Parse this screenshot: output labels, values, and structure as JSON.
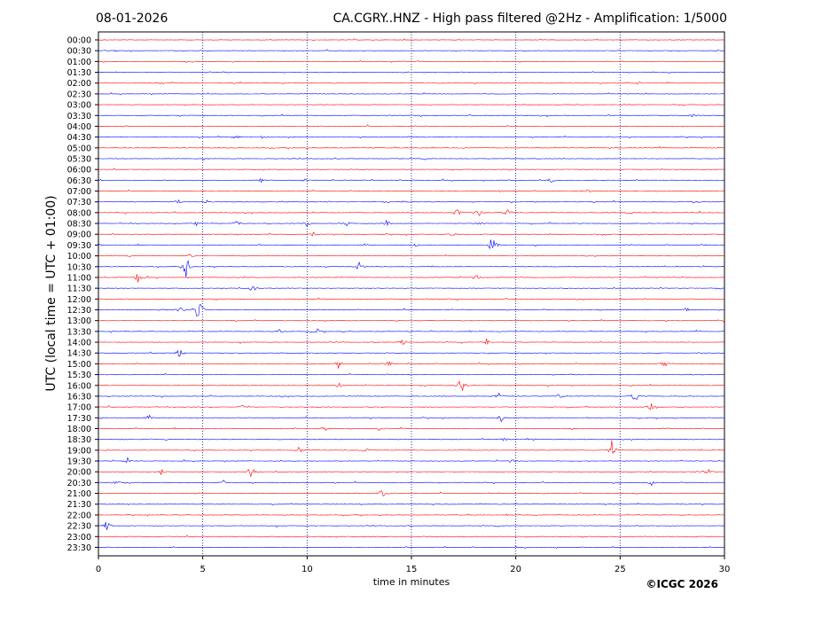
{
  "header": {
    "date": "08-01-2026",
    "title": "CA.CGRY..HNZ - High pass filtered @2Hz - Amplification: 1/5000"
  },
  "copyright": "©ICGC 2026",
  "colors": {
    "red_trace": "#ff0000",
    "blue_trace": "#0000ff",
    "grid": "#000080",
    "axis": "#000000",
    "background": "#ffffff"
  },
  "chart_data": {
    "type": "line",
    "xlabel": "time in minutes",
    "ylabel": "UTC (local time = UTC + 01:00)",
    "xlim": [
      0,
      30
    ],
    "x_ticks": [
      "0",
      "5",
      "10",
      "15",
      "20",
      "25",
      "30"
    ],
    "grid": "vertical dotted lines every 5 minutes",
    "rows": [
      {
        "label": "00:00",
        "color": "red"
      },
      {
        "label": "00:30",
        "color": "blue"
      },
      {
        "label": "01:00",
        "color": "red"
      },
      {
        "label": "01:30",
        "color": "blue"
      },
      {
        "label": "02:00",
        "color": "red"
      },
      {
        "label": "02:30",
        "color": "blue"
      },
      {
        "label": "03:00",
        "color": "red"
      },
      {
        "label": "03:30",
        "color": "blue"
      },
      {
        "label": "04:00",
        "color": "red"
      },
      {
        "label": "04:30",
        "color": "blue"
      },
      {
        "label": "05:00",
        "color": "red"
      },
      {
        "label": "05:30",
        "color": "blue"
      },
      {
        "label": "06:00",
        "color": "red"
      },
      {
        "label": "06:30",
        "color": "blue"
      },
      {
        "label": "07:00",
        "color": "red"
      },
      {
        "label": "07:30",
        "color": "blue"
      },
      {
        "label": "08:00",
        "color": "red"
      },
      {
        "label": "08:30",
        "color": "blue"
      },
      {
        "label": "09:00",
        "color": "red"
      },
      {
        "label": "09:30",
        "color": "blue"
      },
      {
        "label": "10:00",
        "color": "red"
      },
      {
        "label": "10:30",
        "color": "blue"
      },
      {
        "label": "11:00",
        "color": "red"
      },
      {
        "label": "11:30",
        "color": "blue"
      },
      {
        "label": "12:00",
        "color": "red"
      },
      {
        "label": "12:30",
        "color": "blue"
      },
      {
        "label": "13:00",
        "color": "red"
      },
      {
        "label": "13:30",
        "color": "blue"
      },
      {
        "label": "14:00",
        "color": "red"
      },
      {
        "label": "14:30",
        "color": "blue"
      },
      {
        "label": "15:00",
        "color": "red"
      },
      {
        "label": "15:30",
        "color": "blue"
      },
      {
        "label": "16:00",
        "color": "red"
      },
      {
        "label": "16:30",
        "color": "blue"
      },
      {
        "label": "17:00",
        "color": "red"
      },
      {
        "label": "17:30",
        "color": "blue"
      },
      {
        "label": "18:00",
        "color": "red"
      },
      {
        "label": "18:30",
        "color": "blue"
      },
      {
        "label": "19:00",
        "color": "red"
      },
      {
        "label": "19:30",
        "color": "blue"
      },
      {
        "label": "20:00",
        "color": "red"
      },
      {
        "label": "20:30",
        "color": "blue"
      },
      {
        "label": "21:00",
        "color": "red"
      },
      {
        "label": "21:30",
        "color": "blue"
      },
      {
        "label": "22:00",
        "color": "red"
      },
      {
        "label": "22:30",
        "color": "blue"
      },
      {
        "label": "23:00",
        "color": "red"
      },
      {
        "label": "23:30",
        "color": "blue"
      }
    ],
    "events": [
      {
        "row": "02:00",
        "minute": 25.9,
        "amplitude": 0.15
      },
      {
        "row": "03:30",
        "minute": 28.5,
        "amplitude": 0.2
      },
      {
        "row": "04:30",
        "minute": 6.6,
        "amplitude": 0.3
      },
      {
        "row": "04:30",
        "minute": 7.9,
        "amplitude": 0.2
      },
      {
        "row": "06:30",
        "minute": 7.8,
        "amplitude": 0.25
      },
      {
        "row": "06:30",
        "minute": 9.9,
        "amplitude": 0.2
      },
      {
        "row": "06:30",
        "minute": 21.7,
        "amplitude": 0.3
      },
      {
        "row": "07:00",
        "minute": 19.3,
        "amplitude": 0.2
      },
      {
        "row": "07:00",
        "minute": 23.5,
        "amplitude": 0.25
      },
      {
        "row": "07:30",
        "minute": 3.8,
        "amplitude": 0.3
      },
      {
        "row": "07:30",
        "minute": 5.2,
        "amplitude": 0.2
      },
      {
        "row": "07:30",
        "minute": 14.6,
        "amplitude": 0.2
      },
      {
        "row": "07:30",
        "minute": 28.5,
        "amplitude": 0.2
      },
      {
        "row": "08:00",
        "minute": 17.2,
        "amplitude": 0.5
      },
      {
        "row": "08:00",
        "minute": 18.2,
        "amplitude": 0.5
      },
      {
        "row": "08:00",
        "minute": 19.6,
        "amplitude": 0.6
      },
      {
        "row": "08:00",
        "minute": 25.5,
        "amplitude": 0.2
      },
      {
        "row": "08:30",
        "minute": 4.7,
        "amplitude": 0.25
      },
      {
        "row": "08:30",
        "minute": 6.6,
        "amplitude": 0.3
      },
      {
        "row": "08:30",
        "minute": 10.0,
        "amplitude": 0.3
      },
      {
        "row": "08:30",
        "minute": 11.9,
        "amplitude": 0.3
      },
      {
        "row": "08:30",
        "minute": 13.8,
        "amplitude": 0.35
      },
      {
        "row": "08:30",
        "minute": 18.3,
        "amplitude": 0.35
      },
      {
        "row": "09:00",
        "minute": 10.3,
        "amplitude": 0.25
      },
      {
        "row": "09:00",
        "minute": 17.0,
        "amplitude": 0.25
      },
      {
        "row": "09:30",
        "minute": 15.2,
        "amplitude": 0.25
      },
      {
        "row": "09:30",
        "minute": 18.9,
        "amplitude": 1.5
      },
      {
        "row": "09:30",
        "minute": 29.0,
        "amplitude": 0.2
      },
      {
        "row": "10:00",
        "minute": 4.4,
        "amplitude": 0.25
      },
      {
        "row": "10:30",
        "minute": 4.2,
        "amplitude": 1.6
      },
      {
        "row": "10:30",
        "minute": 12.5,
        "amplitude": 0.6
      },
      {
        "row": "11:00",
        "minute": 1.9,
        "amplitude": 0.7
      },
      {
        "row": "11:00",
        "minute": 18.1,
        "amplitude": 0.4
      },
      {
        "row": "11:30",
        "minute": 7.4,
        "amplitude": 0.55
      },
      {
        "row": "12:30",
        "minute": 3.9,
        "amplitude": 0.45
      },
      {
        "row": "12:30",
        "minute": 4.8,
        "amplitude": 2.0
      },
      {
        "row": "12:30",
        "minute": 28.2,
        "amplitude": 0.4
      },
      {
        "row": "13:30",
        "minute": 8.7,
        "amplitude": 0.3
      },
      {
        "row": "13:30",
        "minute": 10.5,
        "amplitude": 0.3
      },
      {
        "row": "14:00",
        "minute": 14.6,
        "amplitude": 0.4
      },
      {
        "row": "14:00",
        "minute": 18.6,
        "amplitude": 0.45
      },
      {
        "row": "14:30",
        "minute": 3.9,
        "amplitude": 0.6
      },
      {
        "row": "15:00",
        "minute": 11.5,
        "amplitude": 0.55
      },
      {
        "row": "15:00",
        "minute": 13.9,
        "amplitude": 0.35
      },
      {
        "row": "15:00",
        "minute": 27.1,
        "amplitude": 0.6
      },
      {
        "row": "16:00",
        "minute": 11.5,
        "amplitude": 0.35
      },
      {
        "row": "16:00",
        "minute": 17.4,
        "amplitude": 1.1
      },
      {
        "row": "16:30",
        "minute": 19.2,
        "amplitude": 0.35
      },
      {
        "row": "16:30",
        "minute": 22.1,
        "amplitude": 0.4
      },
      {
        "row": "16:30",
        "minute": 25.7,
        "amplitude": 0.9
      },
      {
        "row": "17:00",
        "minute": 6.9,
        "amplitude": 0.35
      },
      {
        "row": "17:00",
        "minute": 26.5,
        "amplitude": 0.6
      },
      {
        "row": "17:30",
        "minute": 2.4,
        "amplitude": 0.5
      },
      {
        "row": "17:30",
        "minute": 19.3,
        "amplitude": 0.45
      },
      {
        "row": "18:00",
        "minute": 10.8,
        "amplitude": 0.5
      },
      {
        "row": "18:00",
        "minute": 13.5,
        "amplitude": 0.3
      },
      {
        "row": "18:30",
        "minute": 19.4,
        "amplitude": 0.3
      },
      {
        "row": "18:30",
        "minute": 20.7,
        "amplitude": 0.35
      },
      {
        "row": "19:00",
        "minute": 9.6,
        "amplitude": 0.45
      },
      {
        "row": "19:00",
        "minute": 12.8,
        "amplitude": 0.3
      },
      {
        "row": "19:00",
        "minute": 24.6,
        "amplitude": 1.3
      },
      {
        "row": "19:30",
        "minute": 1.4,
        "amplitude": 0.35
      },
      {
        "row": "19:30",
        "minute": 19.8,
        "amplitude": 0.3
      },
      {
        "row": "20:00",
        "minute": 3.0,
        "amplitude": 0.35
      },
      {
        "row": "20:00",
        "minute": 7.3,
        "amplitude": 1.1
      },
      {
        "row": "20:00",
        "minute": 29.2,
        "amplitude": 0.4
      },
      {
        "row": "20:30",
        "minute": 0.8,
        "amplitude": 0.3
      },
      {
        "row": "20:30",
        "minute": 6.0,
        "amplitude": 0.25
      },
      {
        "row": "20:30",
        "minute": 26.5,
        "amplitude": 0.3
      },
      {
        "row": "21:00",
        "minute": 13.6,
        "amplitude": 0.65
      },
      {
        "row": "22:30",
        "minute": 0.4,
        "amplitude": 0.5
      }
    ]
  }
}
